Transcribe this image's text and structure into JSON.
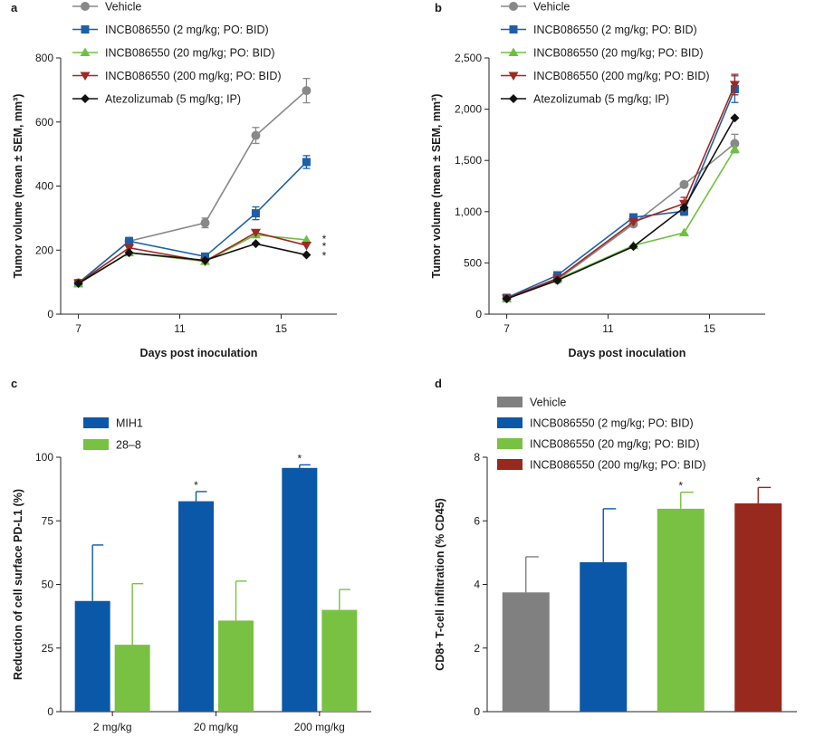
{
  "colors": {
    "vehicle_line": "#888888",
    "inc2": "#1f5fa8",
    "inc20": "#6ec13f",
    "inc200": "#9b2a23",
    "atezo": "#111111",
    "mih1": "#0b58a8",
    "p28_8": "#79c142",
    "bar_vehicle": "#808080",
    "bar_inc2": "#0b58a8",
    "bar_inc20": "#79c142",
    "bar_inc200": "#97291f"
  },
  "chart_data": [
    {
      "panel": "a",
      "type": "line",
      "xlabel": "Days post inoculation",
      "ylabel": "Tumor volume (mean ± SEM, mm³)",
      "xlim": [
        6.3,
        17.2
      ],
      "ylim": [
        0,
        800
      ],
      "xticks": [
        7,
        11,
        15
      ],
      "yticks": [
        0,
        200,
        400,
        600,
        800
      ],
      "ytick_labels": [
        "0",
        "200",
        "400",
        "600",
        "800"
      ],
      "legend_position": "top-left",
      "series": [
        {
          "name": "Vehicle",
          "color_key": "vehicle_line",
          "marker": "circle",
          "x": [
            7,
            9,
            12,
            14,
            16
          ],
          "y": [
            98,
            228,
            285,
            558,
            698
          ],
          "err": [
            6,
            12,
            15,
            25,
            38
          ]
        },
        {
          "name": "INCB086550 (2 mg/kg; PO: BID)",
          "color_key": "inc2",
          "marker": "square",
          "x": [
            7,
            9,
            12,
            14,
            16
          ],
          "y": [
            97,
            228,
            180,
            315,
            475
          ],
          "err": [
            5,
            10,
            10,
            20,
            20
          ]
        },
        {
          "name": "INCB086550 (20 mg/kg; PO: BID)",
          "color_key": "inc20",
          "marker": "triangle-up",
          "x": [
            7,
            9,
            12,
            14,
            16
          ],
          "y": [
            95,
            192,
            165,
            248,
            232
          ],
          "err": [
            0,
            0,
            0,
            0,
            0
          ]
        },
        {
          "name": "INCB086550 (200 mg/kg; PO: BID)",
          "color_key": "inc200",
          "marker": "triangle-down",
          "x": [
            7,
            9,
            12,
            14,
            16
          ],
          "y": [
            97,
            207,
            165,
            255,
            215
          ],
          "err": [
            0,
            0,
            0,
            0,
            0
          ]
        },
        {
          "name": "Atezolizumab (5 mg/kg; IP)",
          "color_key": "atezo",
          "marker": "diamond",
          "x": [
            7,
            9,
            12,
            14,
            16
          ],
          "y": [
            96,
            192,
            168,
            220,
            185
          ],
          "err": [
            0,
            0,
            0,
            0,
            0
          ]
        }
      ],
      "annotations": [
        {
          "text": "*",
          "x": 16.7,
          "y": 238
        },
        {
          "text": "*",
          "x": 16.7,
          "y": 215
        },
        {
          "text": "*",
          "x": 16.7,
          "y": 185
        }
      ]
    },
    {
      "panel": "b",
      "type": "line",
      "xlabel": "Days post inoculation",
      "ylabel": "Tumor volume (mean ± SEM, mm³)",
      "xlim": [
        6.3,
        17.2
      ],
      "ylim": [
        0,
        2500
      ],
      "xticks": [
        7,
        11,
        15
      ],
      "yticks": [
        0,
        500,
        1000,
        1500,
        2000,
        2500
      ],
      "ytick_labels": [
        "0",
        "500",
        "1,000",
        "1,500",
        "2,000",
        "2,500"
      ],
      "legend_position": "top-left",
      "series": [
        {
          "name": "Vehicle",
          "color_key": "vehicle_line",
          "marker": "circle",
          "x": [
            7,
            9,
            12,
            14,
            16
          ],
          "y": [
            155,
            335,
            880,
            1265,
            1665
          ],
          "err": [
            0,
            0,
            0,
            0,
            90
          ]
        },
        {
          "name": "INCB086550 (2 mg/kg; PO: BID)",
          "color_key": "inc2",
          "marker": "square",
          "x": [
            7,
            9,
            12,
            14,
            16
          ],
          "y": [
            160,
            380,
            945,
            1005,
            2195
          ],
          "err": [
            0,
            0,
            0,
            40,
            130
          ]
        },
        {
          "name": "INCB086550 (20 mg/kg; PO: BID)",
          "color_key": "inc20",
          "marker": "triangle-up",
          "x": [
            7,
            9,
            12,
            14,
            16
          ],
          "y": [
            150,
            340,
            670,
            795,
            1610
          ],
          "err": [
            0,
            0,
            0,
            0,
            0
          ]
        },
        {
          "name": "INCB086550 (200 mg/kg; PO: BID)",
          "color_key": "inc200",
          "marker": "triangle-down",
          "x": [
            7,
            9,
            12,
            14,
            16
          ],
          "y": [
            155,
            350,
            900,
            1080,
            2240
          ],
          "err": [
            0,
            0,
            0,
            60,
            100
          ]
        },
        {
          "name": "Atezolizumab (5 mg/kg; IP)",
          "color_key": "atezo",
          "marker": "diamond",
          "x": [
            7,
            9,
            12,
            14,
            16
          ],
          "y": [
            150,
            330,
            660,
            1040,
            1915
          ],
          "err": [
            0,
            0,
            0,
            0,
            0
          ]
        }
      ]
    },
    {
      "panel": "c",
      "type": "bar",
      "ylabel": "Reduction of cell surface PD-L1 (%)",
      "categories": [
        "2 mg/kg",
        "20 mg/kg",
        "200 mg/kg"
      ],
      "ylim": [
        0,
        100
      ],
      "yticks": [
        0,
        25,
        50,
        75,
        100
      ],
      "ytick_labels": [
        "0",
        "25",
        "50",
        "75",
        "100"
      ],
      "legend_position": "top-left",
      "series": [
        {
          "name": "MIH1",
          "color_key": "mih1",
          "values": [
            43.5,
            82.7,
            95.8
          ],
          "err": [
            22,
            3.8,
            1.2
          ],
          "sig": [
            "",
            "*",
            "*"
          ]
        },
        {
          "name": "28–8",
          "color_key": "p28_8",
          "values": [
            26.3,
            35.8,
            40.0
          ],
          "err": [
            24,
            15.5,
            8
          ],
          "sig": [
            "",
            "",
            ""
          ]
        }
      ]
    },
    {
      "panel": "d",
      "type": "bar",
      "ylabel": "CD8+ T-cell infiltration (% CD45)",
      "ylim": [
        0,
        8
      ],
      "yticks": [
        0,
        2,
        4,
        6,
        8
      ],
      "ytick_labels": [
        "0",
        "2",
        "4",
        "6",
        "8"
      ],
      "legend_position": "top-left",
      "groups": [
        {
          "name": "Vehicle",
          "color_key": "bar_vehicle",
          "value": 3.75,
          "err": 1.12,
          "sig": ""
        },
        {
          "name": "INCB086550 (2 mg/kg; PO: BID)",
          "color_key": "bar_inc2",
          "value": 4.7,
          "err": 1.68,
          "sig": ""
        },
        {
          "name": "INCB086550 (20 mg/kg; PO: BID)",
          "color_key": "bar_inc20",
          "value": 6.38,
          "err": 0.52,
          "sig": "*"
        },
        {
          "name": "INCB086550 (200 mg/kg; PO: BID)",
          "color_key": "bar_inc200",
          "value": 6.55,
          "err": 0.5,
          "sig": "*"
        }
      ]
    }
  ]
}
